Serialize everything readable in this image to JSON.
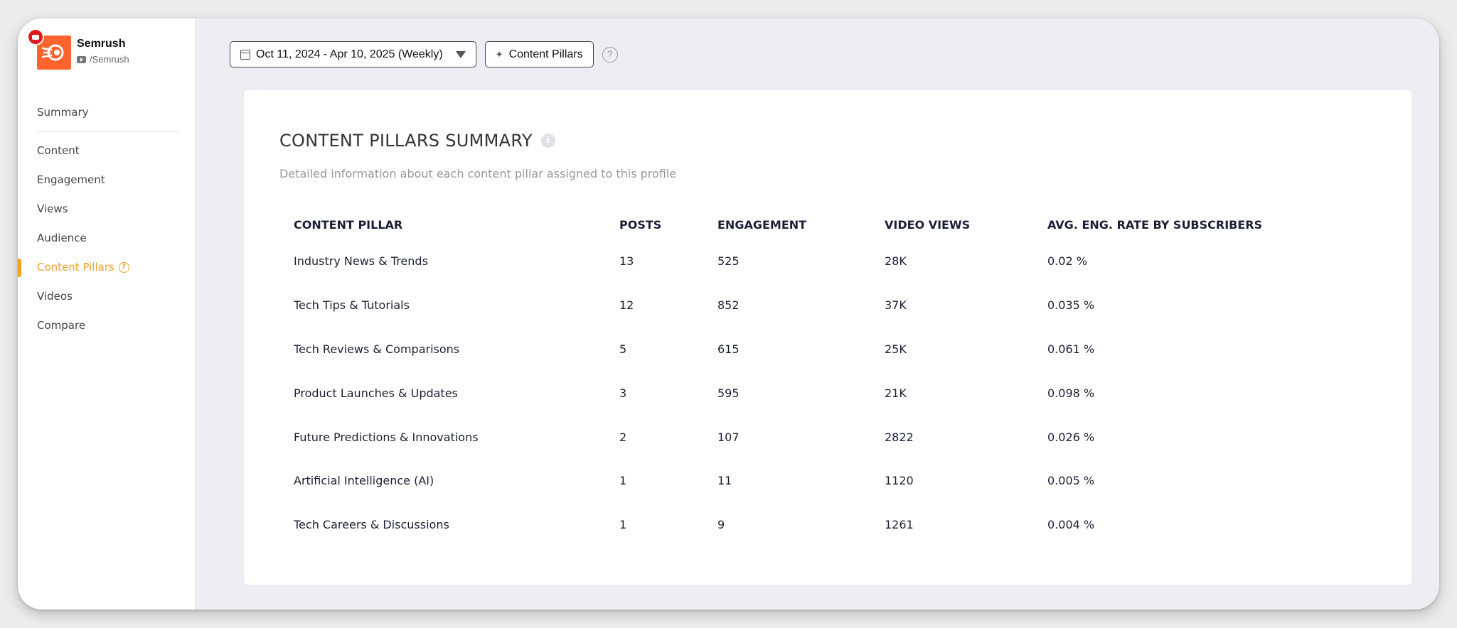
{
  "profile": {
    "name": "Semrush",
    "handle": "/Semrush"
  },
  "icons": {
    "platform": "youtube-icon",
    "brand": "semrush-logo-icon",
    "calendar": "calendar-icon",
    "sparkle": "sparkle-icon",
    "help": "help-icon",
    "info": "info-icon"
  },
  "colors": {
    "accent": "#f0a326",
    "brand": "#ff642d",
    "youtube": "#e01b1b"
  },
  "nav": {
    "summary": "Summary",
    "items": [
      "Content",
      "Engagement",
      "Views",
      "Audience",
      "Content Pillars",
      "Videos",
      "Compare"
    ],
    "active": "Content Pillars",
    "help_glyph": "?"
  },
  "toolbar": {
    "date_range": "Oct 11, 2024 - Apr 10, 2025 (Weekly)",
    "pillars_button": "Content Pillars",
    "help_glyph": "?"
  },
  "card": {
    "title": "CONTENT PILLARS SUMMARY",
    "info_glyph": "i",
    "subtitle": "Detailed information about each content pillar assigned to this profile"
  },
  "table": {
    "headers": [
      "CONTENT PILLAR",
      "POSTS",
      "ENGAGEMENT",
      "VIDEO VIEWS",
      "AVG. ENG. RATE BY SUBSCRIBERS"
    ],
    "rows": [
      [
        "Industry News & Trends",
        "13",
        "525",
        "28K",
        "0.02 %"
      ],
      [
        "Tech Tips & Tutorials",
        "12",
        "852",
        "37K",
        "0.035 %"
      ],
      [
        "Tech Reviews & Comparisons",
        "5",
        "615",
        "25K",
        "0.061 %"
      ],
      [
        "Product Launches & Updates",
        "3",
        "595",
        "21K",
        "0.098 %"
      ],
      [
        "Future Predictions & Innovations",
        "2",
        "107",
        "2822",
        "0.026 %"
      ],
      [
        "Artificial Intelligence (AI)",
        "1",
        "11",
        "1120",
        "0.005 %"
      ],
      [
        "Tech Careers & Discussions",
        "1",
        "9",
        "1261",
        "0.004 %"
      ]
    ]
  }
}
